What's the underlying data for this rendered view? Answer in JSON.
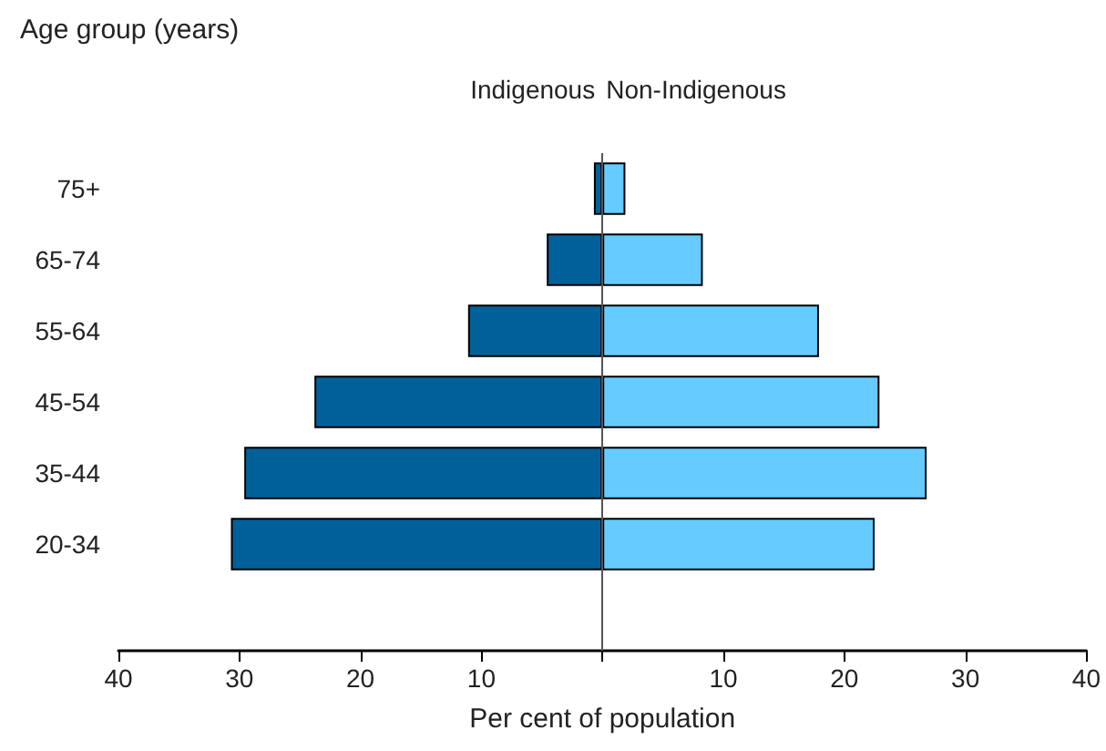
{
  "chart_data": {
    "type": "bar",
    "orientation": "horizontal",
    "ylabel": "Age group (years)",
    "xlabel": "Per cent of population",
    "categories": [
      "75+",
      "65-74",
      "55-64",
      "45-54",
      "35-44",
      "20-34",
      null
    ],
    "series": [
      {
        "name": "Indigenous",
        "color": "#00619a",
        "values": [
          -0.7,
          -4.6,
          -11.1,
          -23.8,
          -29.6,
          -30.7,
          null
        ]
      },
      {
        "name": "Non-Indigenous",
        "color": "#66ccff",
        "values": [
          1.9,
          8.3,
          17.9,
          22.9,
          26.8,
          22.5,
          null
        ]
      }
    ],
    "xlim": [
      -40,
      40
    ],
    "xticks": [
      {
        "value": -40,
        "label": "40"
      },
      {
        "value": -30,
        "label": "30"
      },
      {
        "value": -20,
        "label": "20"
      },
      {
        "value": -10,
        "label": "10"
      },
      {
        "value": 0,
        "label": null
      },
      {
        "value": 10,
        "label": "10"
      },
      {
        "value": 20,
        "label": "20"
      },
      {
        "value": 30,
        "label": "30"
      },
      {
        "value": 40,
        "label": "40"
      }
    ],
    "ref_lines": [
      {
        "axis": "x",
        "value": 0,
        "color": "#555555",
        "line_style": "solid"
      }
    ],
    "stacked": true,
    "grid": false,
    "legend": false
  }
}
